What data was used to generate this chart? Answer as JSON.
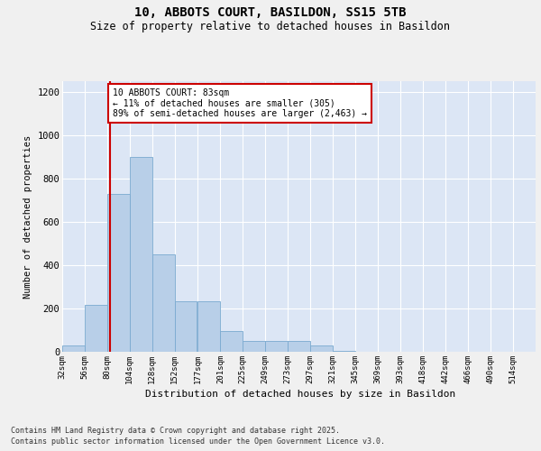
{
  "title_line1": "10, ABBOTS COURT, BASILDON, SS15 5TB",
  "title_line2": "Size of property relative to detached houses in Basildon",
  "xlabel": "Distribution of detached houses by size in Basildon",
  "ylabel": "Number of detached properties",
  "background_color": "#dce6f5",
  "bar_color": "#b8cfe8",
  "bar_edge_color": "#7aaad0",
  "bins": [
    32,
    56,
    80,
    104,
    128,
    152,
    177,
    201,
    225,
    249,
    273,
    297,
    321,
    345,
    369,
    393,
    418,
    442,
    466,
    490,
    514
  ],
  "values": [
    28,
    215,
    730,
    900,
    450,
    235,
    235,
    95,
    50,
    50,
    50,
    28,
    5,
    0,
    0,
    0,
    0,
    0,
    0,
    0
  ],
  "property_size": 83,
  "annotation_text": "10 ABBOTS COURT: 83sqm\n← 11% of detached houses are smaller (305)\n89% of semi-detached houses are larger (2,463) →",
  "annotation_box_color": "#ffffff",
  "annotation_box_edge": "#cc0000",
  "vline_color": "#cc0000",
  "ylim": [
    0,
    1250
  ],
  "yticks": [
    0,
    200,
    400,
    600,
    800,
    1000,
    1200
  ],
  "footnote1": "Contains HM Land Registry data © Crown copyright and database right 2025.",
  "footnote2": "Contains public sector information licensed under the Open Government Licence v3.0.",
  "fig_bg_color": "#f0f0f0"
}
